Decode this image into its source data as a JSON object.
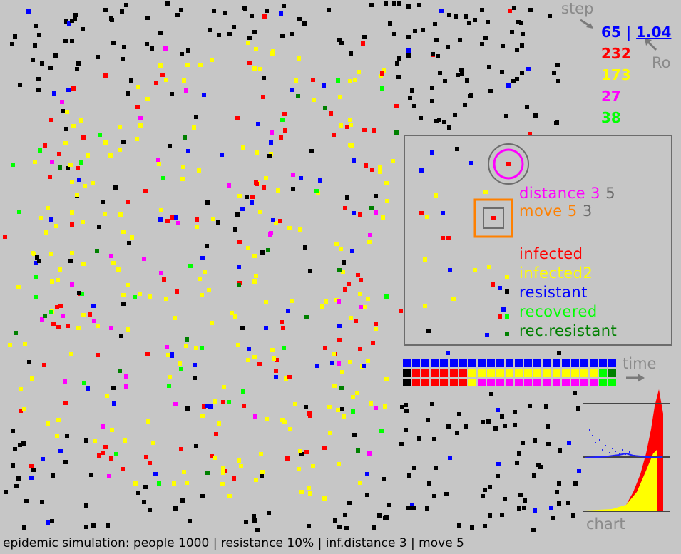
{
  "hud": {
    "step_label": "step",
    "ro_label": "Ro",
    "step_value": "65",
    "separator": "|",
    "ro_value": "1.04",
    "count_infected": "232",
    "count_infected2": "173",
    "count_resistant_infected": "27",
    "count_recovered": "38"
  },
  "legend": {
    "distance_label": "distance",
    "distance_value": "3",
    "distance_alt": "5",
    "move_label": "move",
    "move_value": "5",
    "move_alt": "3",
    "items": [
      {
        "label": "infected",
        "color": "#ff0000"
      },
      {
        "label": "infected2",
        "color": "#ffff00"
      },
      {
        "label": "resistant",
        "color": "#0000ff"
      },
      {
        "label": "recovered",
        "color": "#00ff00"
      },
      {
        "label": "rec.resistant",
        "color": "#008000"
      }
    ]
  },
  "time_label": "time",
  "chart_label": "chart",
  "status": {
    "text": "epidemic simulation: people  1000 | resistance 10% | inf.distance 3 | move 5"
  },
  "colors": {
    "background": "#c6c6c6",
    "healthy": "#000000",
    "infected": "#ff0000",
    "infected2": "#ffff00",
    "resistant": "#0000ff",
    "resistant_infected": "#ff00ff",
    "recovered": "#00ff00",
    "rec_resistant": "#008000",
    "distance_accent": "#ff00ff",
    "move_accent": "#ff8000",
    "hud_label": "#8a8a8a"
  },
  "state_strip": {
    "row1": [
      "resistant",
      "resistant",
      "resistant",
      "resistant",
      "resistant",
      "resistant",
      "resistant",
      "resistant",
      "resistant",
      "resistant",
      "resistant",
      "resistant",
      "resistant",
      "resistant",
      "resistant",
      "resistant",
      "resistant",
      "resistant",
      "resistant",
      "resistant",
      "resistant",
      "resistant",
      "resistant"
    ],
    "row2": [
      "healthy",
      "infected",
      "infected",
      "infected",
      "infected",
      "infected",
      "infected",
      "infected2",
      "infected2",
      "infected2",
      "infected2",
      "infected2",
      "infected2",
      "infected2",
      "infected2",
      "infected2",
      "infected2",
      "infected2",
      "infected2",
      "infected2",
      "infected2",
      "recovered",
      "rec_resistant"
    ],
    "row3": [
      "healthy",
      "infected",
      "infected",
      "infected",
      "infected",
      "infected",
      "infected",
      "infected2",
      "resistant_infected",
      "resistant_infected",
      "resistant_infected",
      "resistant_infected",
      "resistant_infected",
      "resistant_infected",
      "resistant_infected",
      "resistant_infected",
      "resistant_infected",
      "resistant_infected",
      "resistant_infected",
      "resistant_infected",
      "resistant_infected",
      "recovered",
      "recovered"
    ]
  }
}
